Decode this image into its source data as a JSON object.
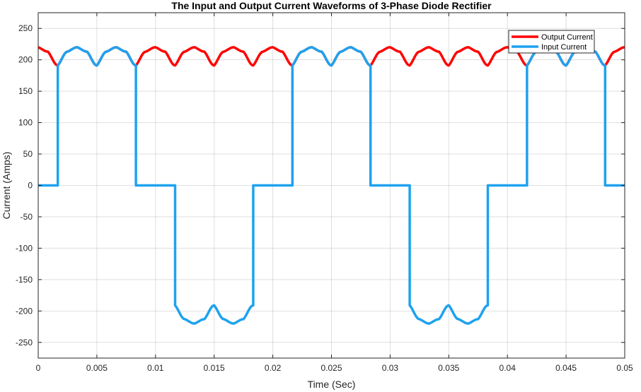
{
  "chart_data": {
    "type": "line",
    "title": "The Input and Output Current Waveforms of 3-Phase Diode Rectifier",
    "xlabel": "Time (Sec)",
    "ylabel": "Current (Amps)",
    "xlim": [
      0,
      0.05
    ],
    "ylim": [
      -275,
      275
    ],
    "xticks": [
      0,
      0.005,
      0.01,
      0.015,
      0.02,
      0.025,
      0.03,
      0.035,
      0.04,
      0.045,
      0.05
    ],
    "xtick_labels": [
      "0",
      "0.005",
      "0.01",
      "0.015",
      "0.02",
      "0.025",
      "0.03",
      "0.035",
      "0.04",
      "0.045",
      "0.05"
    ],
    "yticks": [
      -250,
      -200,
      -150,
      -100,
      -50,
      0,
      50,
      100,
      150,
      200,
      250
    ],
    "ytick_labels": [
      "-250",
      "-200",
      "-150",
      "-100",
      "-50",
      "0",
      "50",
      "100",
      "150",
      "200",
      "250"
    ],
    "grid": true,
    "legend_position": "top-right",
    "series": [
      {
        "name": "Output Current",
        "color": "#ff0000",
        "x": [
          0,
          0.00083,
          0.00167,
          0.0025,
          0.00333,
          0.00417,
          0.005,
          0.00583,
          0.00667,
          0.0075,
          0.00833,
          0.00917,
          0.01,
          0.01083,
          0.01167,
          0.0125,
          0.01333,
          0.01417,
          0.015,
          0.01583,
          0.01667,
          0.0175,
          0.01833,
          0.01917,
          0.02,
          0.02083,
          0.02167,
          0.0225,
          0.02333,
          0.02417,
          0.025,
          0.02583,
          0.02667,
          0.0275,
          0.02833,
          0.02917,
          0.03,
          0.03083,
          0.03167,
          0.0325,
          0.03333,
          0.03417,
          0.035,
          0.03583,
          0.03667,
          0.0375,
          0.03833,
          0.03917,
          0.04,
          0.04083,
          0.04167,
          0.0425,
          0.04333,
          0.04417,
          0.045,
          0.04583,
          0.04667,
          0.0475,
          0.04833,
          0.04917,
          0.05
        ],
        "y": [
          220,
          213,
          191,
          213,
          220,
          213,
          191,
          213,
          220,
          213,
          191,
          213,
          220,
          213,
          191,
          213,
          220,
          213,
          191,
          213,
          220,
          213,
          191,
          213,
          220,
          213,
          191,
          213,
          220,
          213,
          191,
          213,
          220,
          213,
          191,
          213,
          220,
          213,
          191,
          213,
          220,
          213,
          191,
          213,
          220,
          213,
          191,
          213,
          220,
          213,
          191,
          213,
          220,
          213,
          191,
          213,
          220,
          213,
          191,
          213,
          220
        ]
      },
      {
        "name": "Input Current",
        "color": "#1ea2f0",
        "x": [
          0,
          0.00167,
          0.00167,
          0.0025,
          0.00333,
          0.00417,
          0.005,
          0.00583,
          0.00667,
          0.0075,
          0.00833,
          0.00833,
          0.01167,
          0.01167,
          0.0125,
          0.01333,
          0.01417,
          0.015,
          0.01583,
          0.01667,
          0.0175,
          0.01833,
          0.01833,
          0.02167,
          0.02167,
          0.0225,
          0.02333,
          0.02417,
          0.025,
          0.02583,
          0.02667,
          0.0275,
          0.02833,
          0.02833,
          0.03167,
          0.03167,
          0.0325,
          0.03333,
          0.03417,
          0.035,
          0.03583,
          0.03667,
          0.0375,
          0.03833,
          0.03833,
          0.04167,
          0.04167,
          0.0425,
          0.04333,
          0.04417,
          0.045,
          0.04583,
          0.04667,
          0.0475,
          0.04833,
          0.04833,
          0.05
        ],
        "y": [
          0,
          0,
          191,
          213,
          220,
          213,
          191,
          213,
          220,
          213,
          191,
          0,
          0,
          -191,
          -213,
          -220,
          -213,
          -191,
          -213,
          -220,
          -213,
          -191,
          0,
          0,
          191,
          213,
          220,
          213,
          191,
          213,
          220,
          213,
          191,
          0,
          0,
          -191,
          -213,
          -220,
          -213,
          -191,
          -213,
          -220,
          -213,
          -191,
          0,
          0,
          191,
          213,
          220,
          213,
          191,
          213,
          220,
          213,
          191,
          0,
          0
        ]
      }
    ]
  }
}
